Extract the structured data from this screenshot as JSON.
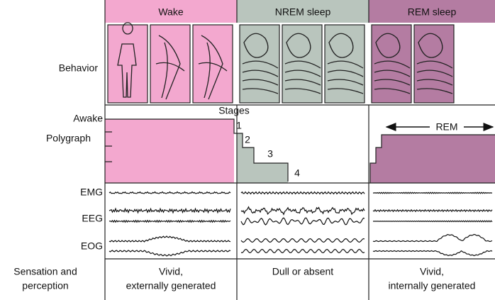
{
  "columns": [
    {
      "title": "Wake",
      "sensation": [
        "Vivid,",
        "externally generated"
      ]
    },
    {
      "title": "NREM sleep",
      "sensation": [
        "Dull or absent"
      ]
    },
    {
      "title": "REM sleep",
      "sensation": [
        "Vivid,",
        "internally generated"
      ]
    }
  ],
  "row_labels": {
    "behavior": "Behavior",
    "awake": "Awake",
    "polygraph": "Polygraph",
    "emg": "EMG",
    "eeg": "EEG",
    "eog": "EOG",
    "sensation": [
      "Sensation and",
      "perception"
    ]
  },
  "polygraph": {
    "stages_label": "Stages",
    "stages": [
      "1",
      "2",
      "3",
      "4"
    ],
    "rem_label": "REM"
  }
}
